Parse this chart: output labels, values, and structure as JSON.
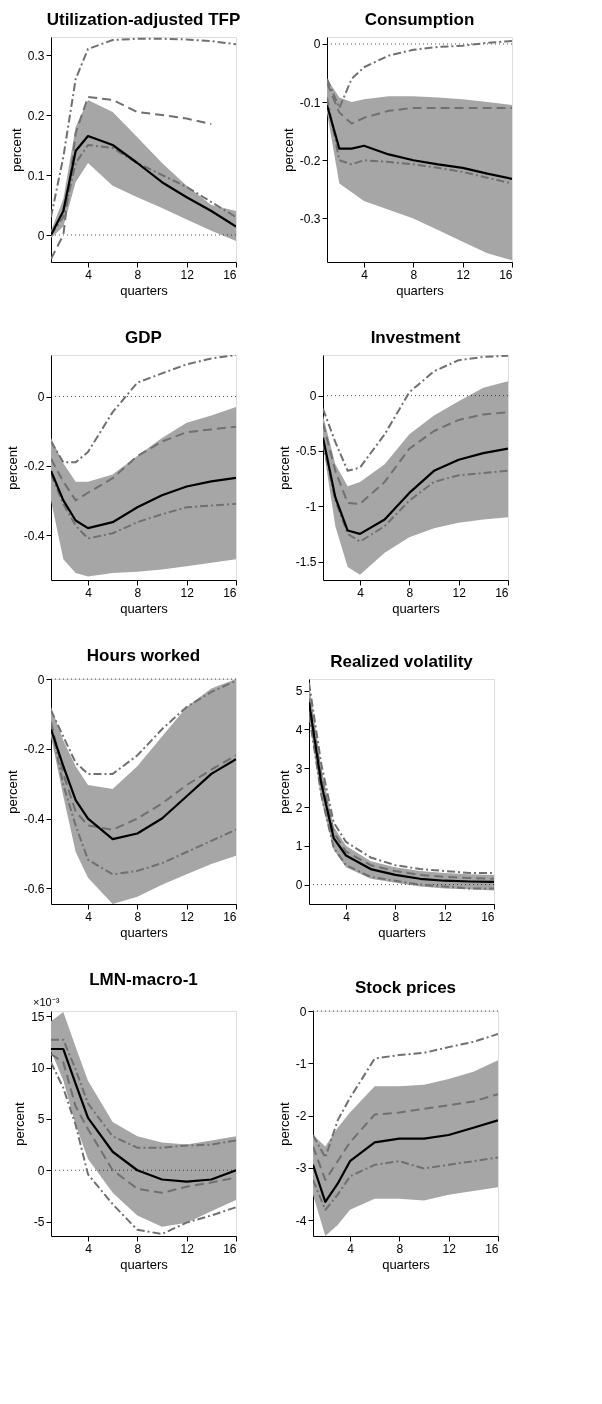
{
  "chart_data": [
    {
      "type": "line",
      "title": "Utilization-adjusted TFP",
      "xlabel": "quarters",
      "ylabel": "percent",
      "x": [
        1,
        2,
        3,
        4,
        6,
        8,
        10,
        12,
        14,
        16
      ],
      "xlim": [
        1,
        16
      ],
      "xticks": [
        4,
        8,
        12,
        16
      ],
      "ylim": [
        -0.045,
        0.33
      ],
      "yticks": [
        0,
        0.1,
        0.2,
        0.3
      ],
      "grid": false,
      "legend": false,
      "marker": "none",
      "ref_lines": [
        {
          "axis": "y",
          "value": 0,
          "color": "#000000",
          "line_style": "dotted"
        }
      ],
      "series": [
        {
          "color": "#000000",
          "line_style": "solid",
          "values": [
            0,
            0.04,
            0.14,
            0.165,
            0.15,
            0.12,
            0.088,
            0.063,
            0.04,
            0.014
          ],
          "lower": [
            -0.005,
            0.014,
            0.088,
            0.12,
            0.082,
            0.063,
            0.045,
            0.026,
            0.007,
            -0.01
          ],
          "upper": [
            0.007,
            0.06,
            0.18,
            0.225,
            0.205,
            0.163,
            0.12,
            0.082,
            0.05,
            0.04
          ]
        },
        {
          "color": "#707070",
          "line_style": "dashed",
          "values": [
            -0.04,
            0.0,
            0.17,
            0.23,
            0.225,
            0.205,
            0.2,
            0.194,
            0.185,
            null
          ]
        },
        {
          "color": "#707070",
          "line_style": "dashdot",
          "values": [
            0.03,
            0.13,
            0.26,
            0.31,
            0.325,
            0.327,
            0.327,
            0.326,
            0.323,
            0.318
          ]
        },
        {
          "color": "#707070",
          "line_style": "dashdot",
          "values": [
            0.0,
            0.03,
            0.12,
            0.15,
            0.145,
            0.12,
            0.1,
            0.08,
            0.055,
            0.03
          ]
        }
      ]
    },
    {
      "type": "line",
      "title": "Consumption",
      "xlabel": "quarters",
      "ylabel": "percent",
      "x": [
        1,
        2,
        3,
        4,
        6,
        8,
        10,
        12,
        14,
        16
      ],
      "xlim": [
        1,
        16
      ],
      "xticks": [
        4,
        8,
        12,
        16
      ],
      "ylim": [
        -0.375,
        0.012
      ],
      "yticks": [
        -0.3,
        -0.2,
        -0.1,
        0
      ],
      "grid": false,
      "legend": false,
      "marker": "none",
      "ref_lines": [
        {
          "axis": "y",
          "value": 0,
          "color": "#000000",
          "line_style": "dotted"
        }
      ],
      "series": [
        {
          "color": "#000000",
          "line_style": "solid",
          "values": [
            -0.105,
            -0.18,
            -0.18,
            -0.175,
            -0.19,
            -0.2,
            -0.207,
            -0.213,
            -0.223,
            -0.232
          ],
          "lower": [
            -0.118,
            -0.24,
            -0.255,
            -0.27,
            -0.285,
            -0.3,
            -0.32,
            -0.34,
            -0.36,
            -0.372
          ],
          "upper": [
            -0.06,
            -0.092,
            -0.1,
            -0.095,
            -0.09,
            -0.09,
            -0.092,
            -0.095,
            -0.1,
            -0.105
          ]
        },
        {
          "color": "#707070",
          "line_style": "dashed",
          "values": [
            -0.067,
            -0.118,
            -0.137,
            -0.127,
            -0.115,
            -0.11,
            -0.11,
            -0.11,
            -0.11,
            -0.11
          ]
        },
        {
          "color": "#707070",
          "line_style": "dashdot",
          "values": [
            -0.06,
            -0.11,
            -0.06,
            -0.04,
            -0.02,
            -0.01,
            -0.005,
            -0.003,
            0.002,
            0.005
          ]
        },
        {
          "color": "#707070",
          "line_style": "dashdot",
          "values": [
            -0.092,
            -0.2,
            -0.207,
            -0.2,
            -0.203,
            -0.207,
            -0.213,
            -0.22,
            -0.23,
            -0.24
          ]
        }
      ]
    },
    {
      "type": "line",
      "title": "GDP",
      "xlabel": "quarters",
      "ylabel": "percent",
      "x": [
        1,
        2,
        3,
        4,
        6,
        8,
        10,
        12,
        14,
        16
      ],
      "xlim": [
        1,
        16
      ],
      "xticks": [
        4,
        8,
        12,
        16
      ],
      "ylim": [
        -0.53,
        0.12
      ],
      "yticks": [
        -0.4,
        -0.2,
        0
      ],
      "grid": false,
      "legend": false,
      "marker": "none",
      "ref_lines": [
        {
          "axis": "y",
          "value": 0,
          "color": "#000000",
          "line_style": "dotted"
        }
      ],
      "series": [
        {
          "color": "#000000",
          "line_style": "solid",
          "values": [
            -0.215,
            -0.3,
            -0.358,
            -0.38,
            -0.363,
            -0.32,
            -0.285,
            -0.26,
            -0.245,
            -0.235
          ],
          "lower": [
            -0.3,
            -0.47,
            -0.51,
            -0.52,
            -0.51,
            -0.506,
            -0.5,
            -0.49,
            -0.48,
            -0.47
          ],
          "upper": [
            -0.12,
            -0.193,
            -0.246,
            -0.246,
            -0.225,
            -0.172,
            -0.12,
            -0.076,
            -0.055,
            -0.03
          ]
        },
        {
          "color": "#707070",
          "line_style": "dashed",
          "values": [
            -0.18,
            -0.246,
            -0.3,
            -0.278,
            -0.236,
            -0.172,
            -0.13,
            -0.103,
            -0.095,
            -0.087
          ]
        },
        {
          "color": "#707070",
          "line_style": "dashdot",
          "values": [
            -0.13,
            -0.19,
            -0.19,
            -0.16,
            -0.045,
            0.04,
            0.067,
            0.093,
            0.11,
            0.12
          ]
        },
        {
          "color": "#707070",
          "line_style": "dashdot",
          "values": [
            -0.225,
            -0.31,
            -0.373,
            -0.41,
            -0.395,
            -0.363,
            -0.34,
            -0.32,
            -0.315,
            -0.31
          ]
        }
      ]
    },
    {
      "type": "line",
      "title": "Investment",
      "xlabel": "quarters",
      "ylabel": "percent",
      "x": [
        1,
        2,
        3,
        4,
        6,
        8,
        10,
        12,
        14,
        16
      ],
      "xlim": [
        1,
        16
      ],
      "xticks": [
        4,
        8,
        12,
        16
      ],
      "ylim": [
        -1.667,
        0.367
      ],
      "yticks": [
        -1.5,
        -1,
        -0.5,
        0
      ],
      "grid": false,
      "legend": false,
      "marker": "none",
      "ref_lines": [
        {
          "axis": "y",
          "value": 0,
          "color": "#000000",
          "line_style": "dotted"
        }
      ],
      "series": [
        {
          "color": "#000000",
          "line_style": "solid",
          "values": [
            -0.38,
            -0.92,
            -1.22,
            -1.25,
            -1.12,
            -0.88,
            -0.68,
            -0.58,
            -0.52,
            -0.48
          ],
          "lower": [
            -0.45,
            -1.18,
            -1.55,
            -1.62,
            -1.42,
            -1.28,
            -1.2,
            -1.15,
            -1.12,
            -1.1
          ],
          "upper": [
            -0.18,
            -0.62,
            -0.82,
            -0.78,
            -0.62,
            -0.35,
            -0.18,
            -0.05,
            0.07,
            0.13
          ]
        },
        {
          "color": "#707070",
          "line_style": "dashed",
          "values": [
            -0.25,
            -0.68,
            -0.97,
            -0.98,
            -0.78,
            -0.48,
            -0.32,
            -0.22,
            -0.17,
            -0.15
          ]
        },
        {
          "color": "#707070",
          "line_style": "dashdot",
          "values": [
            -0.12,
            -0.42,
            -0.68,
            -0.65,
            -0.35,
            0.03,
            0.22,
            0.32,
            0.35,
            0.36
          ]
        },
        {
          "color": "#707070",
          "line_style": "dashdot",
          "values": [
            -0.42,
            -0.95,
            -1.25,
            -1.32,
            -1.18,
            -0.95,
            -0.78,
            -0.72,
            -0.7,
            -0.68
          ]
        }
      ]
    },
    {
      "type": "line",
      "title": "Hours worked",
      "xlabel": "quarters",
      "ylabel": "percent",
      "x": [
        1,
        2,
        3,
        4,
        6,
        8,
        10,
        12,
        14,
        16
      ],
      "xlim": [
        1,
        16
      ],
      "xticks": [
        4,
        8,
        12,
        16
      ],
      "ylim": [
        -0.645,
        0
      ],
      "yticks": [
        -0.6,
        -0.4,
        -0.2,
        0
      ],
      "grid": false,
      "legend": false,
      "marker": "none",
      "ref_lines": [
        {
          "axis": "y",
          "value": 0,
          "color": "#000000",
          "line_style": "dotted"
        }
      ],
      "series": [
        {
          "color": "#000000",
          "line_style": "solid",
          "values": [
            -0.144,
            -0.25,
            -0.347,
            -0.4,
            -0.459,
            -0.443,
            -0.4,
            -0.336,
            -0.272,
            -0.23
          ],
          "lower": [
            -0.165,
            -0.336,
            -0.496,
            -0.57,
            -0.645,
            -0.624,
            -0.59,
            -0.56,
            -0.53,
            -0.507
          ],
          "upper": [
            -0.08,
            -0.176,
            -0.25,
            -0.304,
            -0.315,
            -0.25,
            -0.165,
            -0.08,
            -0.027,
            0
          ]
        },
        {
          "color": "#707070",
          "line_style": "dashed",
          "values": [
            -0.123,
            -0.272,
            -0.38,
            -0.42,
            -0.432,
            -0.4,
            -0.357,
            -0.304,
            -0.26,
            -0.219
          ]
        },
        {
          "color": "#707070",
          "line_style": "dashdot",
          "values": [
            -0.09,
            -0.165,
            -0.24,
            -0.272,
            -0.272,
            -0.219,
            -0.144,
            -0.08,
            -0.037,
            -0.005
          ]
        },
        {
          "color": "#707070",
          "line_style": "dashdot",
          "values": [
            -0.133,
            -0.304,
            -0.42,
            -0.518,
            -0.56,
            -0.55,
            -0.528,
            -0.496,
            -0.464,
            -0.432
          ]
        }
      ]
    },
    {
      "type": "line",
      "title": "Realized volatility",
      "xlabel": "quarters",
      "ylabel": "percent",
      "x": [
        1,
        2,
        3,
        4,
        6,
        8,
        10,
        12,
        14,
        16
      ],
      "xlim": [
        1,
        16
      ],
      "xticks": [
        4,
        8,
        12,
        16
      ],
      "ylim": [
        -0.5,
        5.3
      ],
      "yticks": [
        0,
        1,
        2,
        3,
        4,
        5
      ],
      "grid": false,
      "legend": false,
      "marker": "none",
      "ref_lines": [
        {
          "axis": "y",
          "value": 0,
          "color": "#000000",
          "line_style": "dotted"
        }
      ],
      "series": [
        {
          "color": "#000000",
          "line_style": "solid",
          "values": [
            4.7,
            2.6,
            1.2,
            0.75,
            0.4,
            0.25,
            0.15,
            0.1,
            0.08,
            0.07
          ],
          "lower": [
            4.3,
            2.2,
            0.9,
            0.45,
            0.15,
            0.05,
            -0.05,
            -0.1,
            -0.12,
            -0.15
          ],
          "upper": [
            5.2,
            3.0,
            1.5,
            1.0,
            0.6,
            0.45,
            0.35,
            0.3,
            0.27,
            0.25
          ]
        },
        {
          "color": "#707070",
          "line_style": "dashed",
          "values": [
            4.8,
            2.8,
            1.35,
            0.85,
            0.5,
            0.35,
            0.25,
            0.2,
            0.17,
            0.15
          ]
        },
        {
          "color": "#707070",
          "line_style": "dashdot",
          "values": [
            5.2,
            3.1,
            1.6,
            1.1,
            0.7,
            0.5,
            0.4,
            0.35,
            0.3,
            0.3
          ]
        },
        {
          "color": "#707070",
          "line_style": "dashdot",
          "values": [
            4.4,
            2.3,
            0.95,
            0.5,
            0.2,
            0.1,
            0.0,
            -0.05,
            -0.1,
            -0.1
          ]
        }
      ]
    },
    {
      "type": "line",
      "title": "LMN-macro-1",
      "xlabel": "quarters",
      "ylabel": "percent",
      "annotations": [
        "×10⁻³"
      ],
      "x": [
        1,
        2,
        3,
        4,
        6,
        8,
        10,
        12,
        14,
        16
      ],
      "xlim": [
        1,
        16
      ],
      "xticks": [
        4,
        8,
        12,
        16
      ],
      "ylim": [
        -6.4,
        15.5
      ],
      "yticks": [
        -5,
        0,
        5,
        10,
        15
      ],
      "grid": false,
      "legend": false,
      "marker": "none",
      "ref_lines": [
        {
          "axis": "y",
          "value": 0,
          "color": "#000000",
          "line_style": "dotted"
        }
      ],
      "series": [
        {
          "color": "#000000",
          "line_style": "solid",
          "values": [
            11.8,
            11.8,
            8.4,
            5.1,
            1.8,
            0,
            -0.9,
            -1.1,
            -0.9,
            0
          ],
          "lower": [
            11.6,
            8.7,
            4.4,
            1.1,
            -2.2,
            -4.4,
            -5.5,
            -5.1,
            -4,
            -2.9
          ],
          "upper": [
            14.5,
            15.4,
            12,
            8.7,
            4.7,
            3.3,
            2.7,
            2.5,
            2.9,
            3.3
          ]
        },
        {
          "color": "#707070",
          "line_style": "dashed",
          "values": [
            11.3,
            10.5,
            6.2,
            4,
            0,
            -1.8,
            -2.2,
            -1.6,
            -1.2,
            -0.7
          ]
        },
        {
          "color": "#707070",
          "line_style": "dashdot",
          "values": [
            12.7,
            12.7,
            9.8,
            6.5,
            3.3,
            2.2,
            2.2,
            2.4,
            2.5,
            2.9
          ]
        },
        {
          "color": "#707070",
          "line_style": "dashdot",
          "values": [
            10.5,
            8,
            4.4,
            -0.4,
            -3.3,
            -5.8,
            -6.2,
            -5.1,
            -4.4,
            -3.6
          ]
        }
      ]
    },
    {
      "type": "line",
      "title": "Stock prices",
      "xlabel": "quarters",
      "ylabel": "percent",
      "x": [
        1,
        2,
        3,
        4,
        6,
        8,
        10,
        12,
        14,
        16
      ],
      "xlim": [
        1,
        16
      ],
      "xticks": [
        4,
        8,
        12,
        16
      ],
      "ylim": [
        -4.3,
        0
      ],
      "yticks": [
        -4,
        -3,
        -2,
        -1,
        0
      ],
      "grid": false,
      "legend": false,
      "marker": "none",
      "ref_lines": [
        {
          "axis": "y",
          "value": 0,
          "color": "#000000",
          "line_style": "dotted"
        }
      ],
      "series": [
        {
          "color": "#000000",
          "line_style": "solid",
          "values": [
            -2.94,
            -3.65,
            -3.3,
            -2.87,
            -2.51,
            -2.44,
            -2.44,
            -2.37,
            -2.23,
            -2.09
          ],
          "lower": [
            -3.51,
            -4.3,
            -4.09,
            -3.8,
            -3.59,
            -3.59,
            -3.62,
            -3.51,
            -3.44,
            -3.37
          ],
          "upper": [
            -2.37,
            -2.59,
            -2.23,
            -1.94,
            -1.44,
            -1.44,
            -1.41,
            -1.3,
            -1.16,
            -0.94
          ]
        },
        {
          "color": "#707070",
          "line_style": "dashed",
          "values": [
            -2.59,
            -3.23,
            -2.87,
            -2.51,
            -1.98,
            -1.94,
            -1.87,
            -1.8,
            -1.73,
            -1.59
          ]
        },
        {
          "color": "#707070",
          "line_style": "dashdot",
          "values": [
            -2.37,
            -2.8,
            -2.09,
            -1.66,
            -0.91,
            -0.84,
            -0.8,
            -0.69,
            -0.59,
            -0.44
          ]
        },
        {
          "color": "#707070",
          "line_style": "dashdot",
          "values": [
            -3.23,
            -3.8,
            -3.51,
            -3.16,
            -2.94,
            -2.87,
            -3.01,
            -2.94,
            -2.87,
            -2.8
          ]
        }
      ]
    }
  ]
}
